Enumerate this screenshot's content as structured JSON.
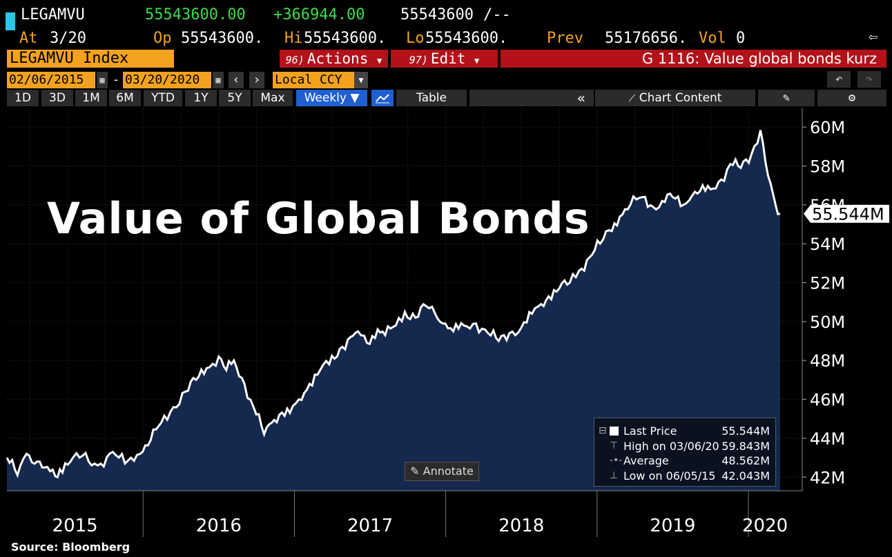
{
  "quote": {
    "ticker": "LEGAMVU",
    "last": "55543600.00",
    "change": "+366944.00",
    "bidask": "55543600",
    "bidask_suffix": "/--",
    "at_label": "At",
    "at_date": "3/20",
    "op_label": "Op",
    "op": "55543600.",
    "hi_label": "Hi",
    "hi": "55543600.",
    "lo_label": "Lo",
    "lo": "55543600.",
    "prev_label": "Prev",
    "prev": "55176656.",
    "vol_label": "Vol",
    "vol": "0"
  },
  "titlebar": {
    "index_name": "LEGAMVU Index",
    "actions_num": "96)",
    "actions_label": "Actions",
    "edit_num": "97)",
    "edit_label": "Edit",
    "function_title": "G 1116: Value global bonds kurz"
  },
  "daterange": {
    "start": "02/06/2015",
    "separator": "-",
    "end": "03/20/2020",
    "currency": "Local CCY"
  },
  "periods": [
    "1D",
    "3D",
    "1M",
    "6M",
    "YTD",
    "1Y",
    "5Y",
    "Max"
  ],
  "toolbar": {
    "frequency": "Weekly ▼",
    "table_label": "Table",
    "collapse_icon": "«",
    "chart_content_label": "Chart Content"
  },
  "overlay_title": "Value of Global Bonds",
  "annotate_label": "Annotate",
  "source": "Source: Bloomberg",
  "legend": {
    "last_label": "Last Price",
    "last_value": "55.544M",
    "high_label": "High on 03/06/20",
    "high_value": "59.843M",
    "avg_label": "Average",
    "avg_value": "48.562M",
    "low_label": "Low on 06/05/15",
    "low_value": "42.043M"
  },
  "colors": {
    "area_fill": "#15284d",
    "line": "#ffffff",
    "accent_orange": "#f2a21e",
    "accent_red": "#b3121b",
    "accent_green": "#3ddc4a"
  },
  "chart_data": {
    "type": "area",
    "title": "Value of Global Bonds",
    "frequency": "Weekly",
    "unit": "M",
    "ylim": [
      41.3,
      61.0
    ],
    "y_ticks": [
      42,
      44,
      46,
      48,
      50,
      52,
      54,
      56,
      58,
      60
    ],
    "y_tick_labels": [
      "42M",
      "44M",
      "46M",
      "48M",
      "50M",
      "52M",
      "54M",
      "56M",
      "58M",
      "60M"
    ],
    "x_tick_labels": [
      "2015",
      "2016",
      "2017",
      "2018",
      "2019",
      "2020"
    ],
    "last_value_label": "55.544M",
    "series": [
      {
        "x": [
          2015.1,
          2015.17,
          2015.23,
          2015.3,
          2015.35,
          2015.42,
          2015.45,
          2015.52,
          2015.6,
          2015.7,
          2015.8,
          2015.88,
          2015.92,
          2015.98,
          2016.05,
          2016.12,
          2016.2,
          2016.28,
          2016.35,
          2016.42,
          2016.5,
          2016.55,
          2016.6,
          2016.67,
          2016.73,
          2016.8,
          2016.85,
          2016.9,
          2016.97,
          2017.03,
          2017.1,
          2017.17,
          2017.23,
          2017.3,
          2017.37,
          2017.42,
          2017.48,
          2017.55,
          2017.6,
          2017.67,
          2017.73,
          2017.8,
          2017.87,
          2017.93,
          2017.98,
          2018.05,
          2018.12,
          2018.2,
          2018.28,
          2018.35,
          2018.42,
          2018.5,
          2018.57,
          2018.63,
          2018.68,
          2018.75,
          2018.82,
          2018.88,
          2018.95,
          2019.02,
          2019.08,
          2019.15,
          2019.22,
          2019.3,
          2019.37,
          2019.43,
          2019.5,
          2019.57,
          2019.63,
          2019.68,
          2019.75,
          2019.82,
          2019.88,
          2019.95,
          2020.02,
          2020.08,
          2020.13,
          2020.18,
          2020.21
        ],
        "values": [
          43.0,
          42.1,
          43.2,
          42.8,
          42.5,
          42.043,
          42.4,
          42.8,
          43.1,
          42.6,
          43.3,
          42.7,
          43.0,
          43.2,
          43.9,
          44.8,
          45.6,
          46.4,
          47.0,
          47.6,
          48.2,
          47.5,
          48.0,
          46.8,
          45.6,
          44.2,
          44.8,
          45.2,
          45.3,
          46.0,
          46.8,
          47.5,
          47.8,
          48.6,
          49.2,
          49.5,
          48.9,
          49.6,
          49.3,
          49.8,
          50.5,
          50.2,
          50.8,
          50.4,
          49.9,
          49.5,
          49.8,
          49.9,
          49.4,
          49.0,
          49.4,
          49.7,
          50.4,
          50.9,
          51.3,
          51.7,
          52.0,
          52.6,
          53.3,
          54.0,
          54.7,
          55.4,
          56.0,
          56.4,
          55.9,
          56.2,
          56.4,
          56.0,
          56.5,
          56.7,
          56.8,
          57.3,
          58.1,
          57.9,
          58.6,
          59.843,
          57.5,
          56.0,
          55.544
        ]
      }
    ],
    "grid": true,
    "legend_position": "bottom-right"
  }
}
